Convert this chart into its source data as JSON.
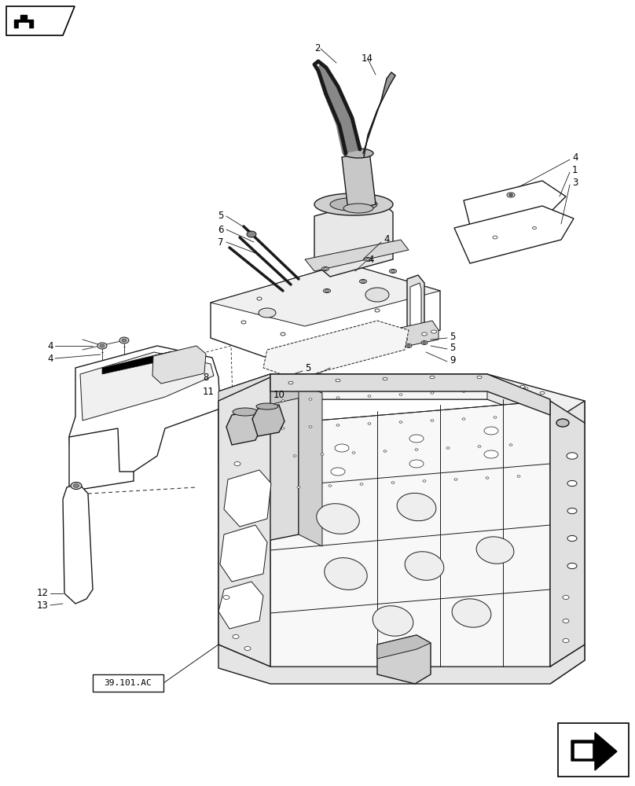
{
  "bg_color": "#ffffff",
  "line_color": "#1a1a1a",
  "fig_width": 8.08,
  "fig_height": 10.0,
  "dpi": 100,
  "label_39101AC": "39.101.AC"
}
